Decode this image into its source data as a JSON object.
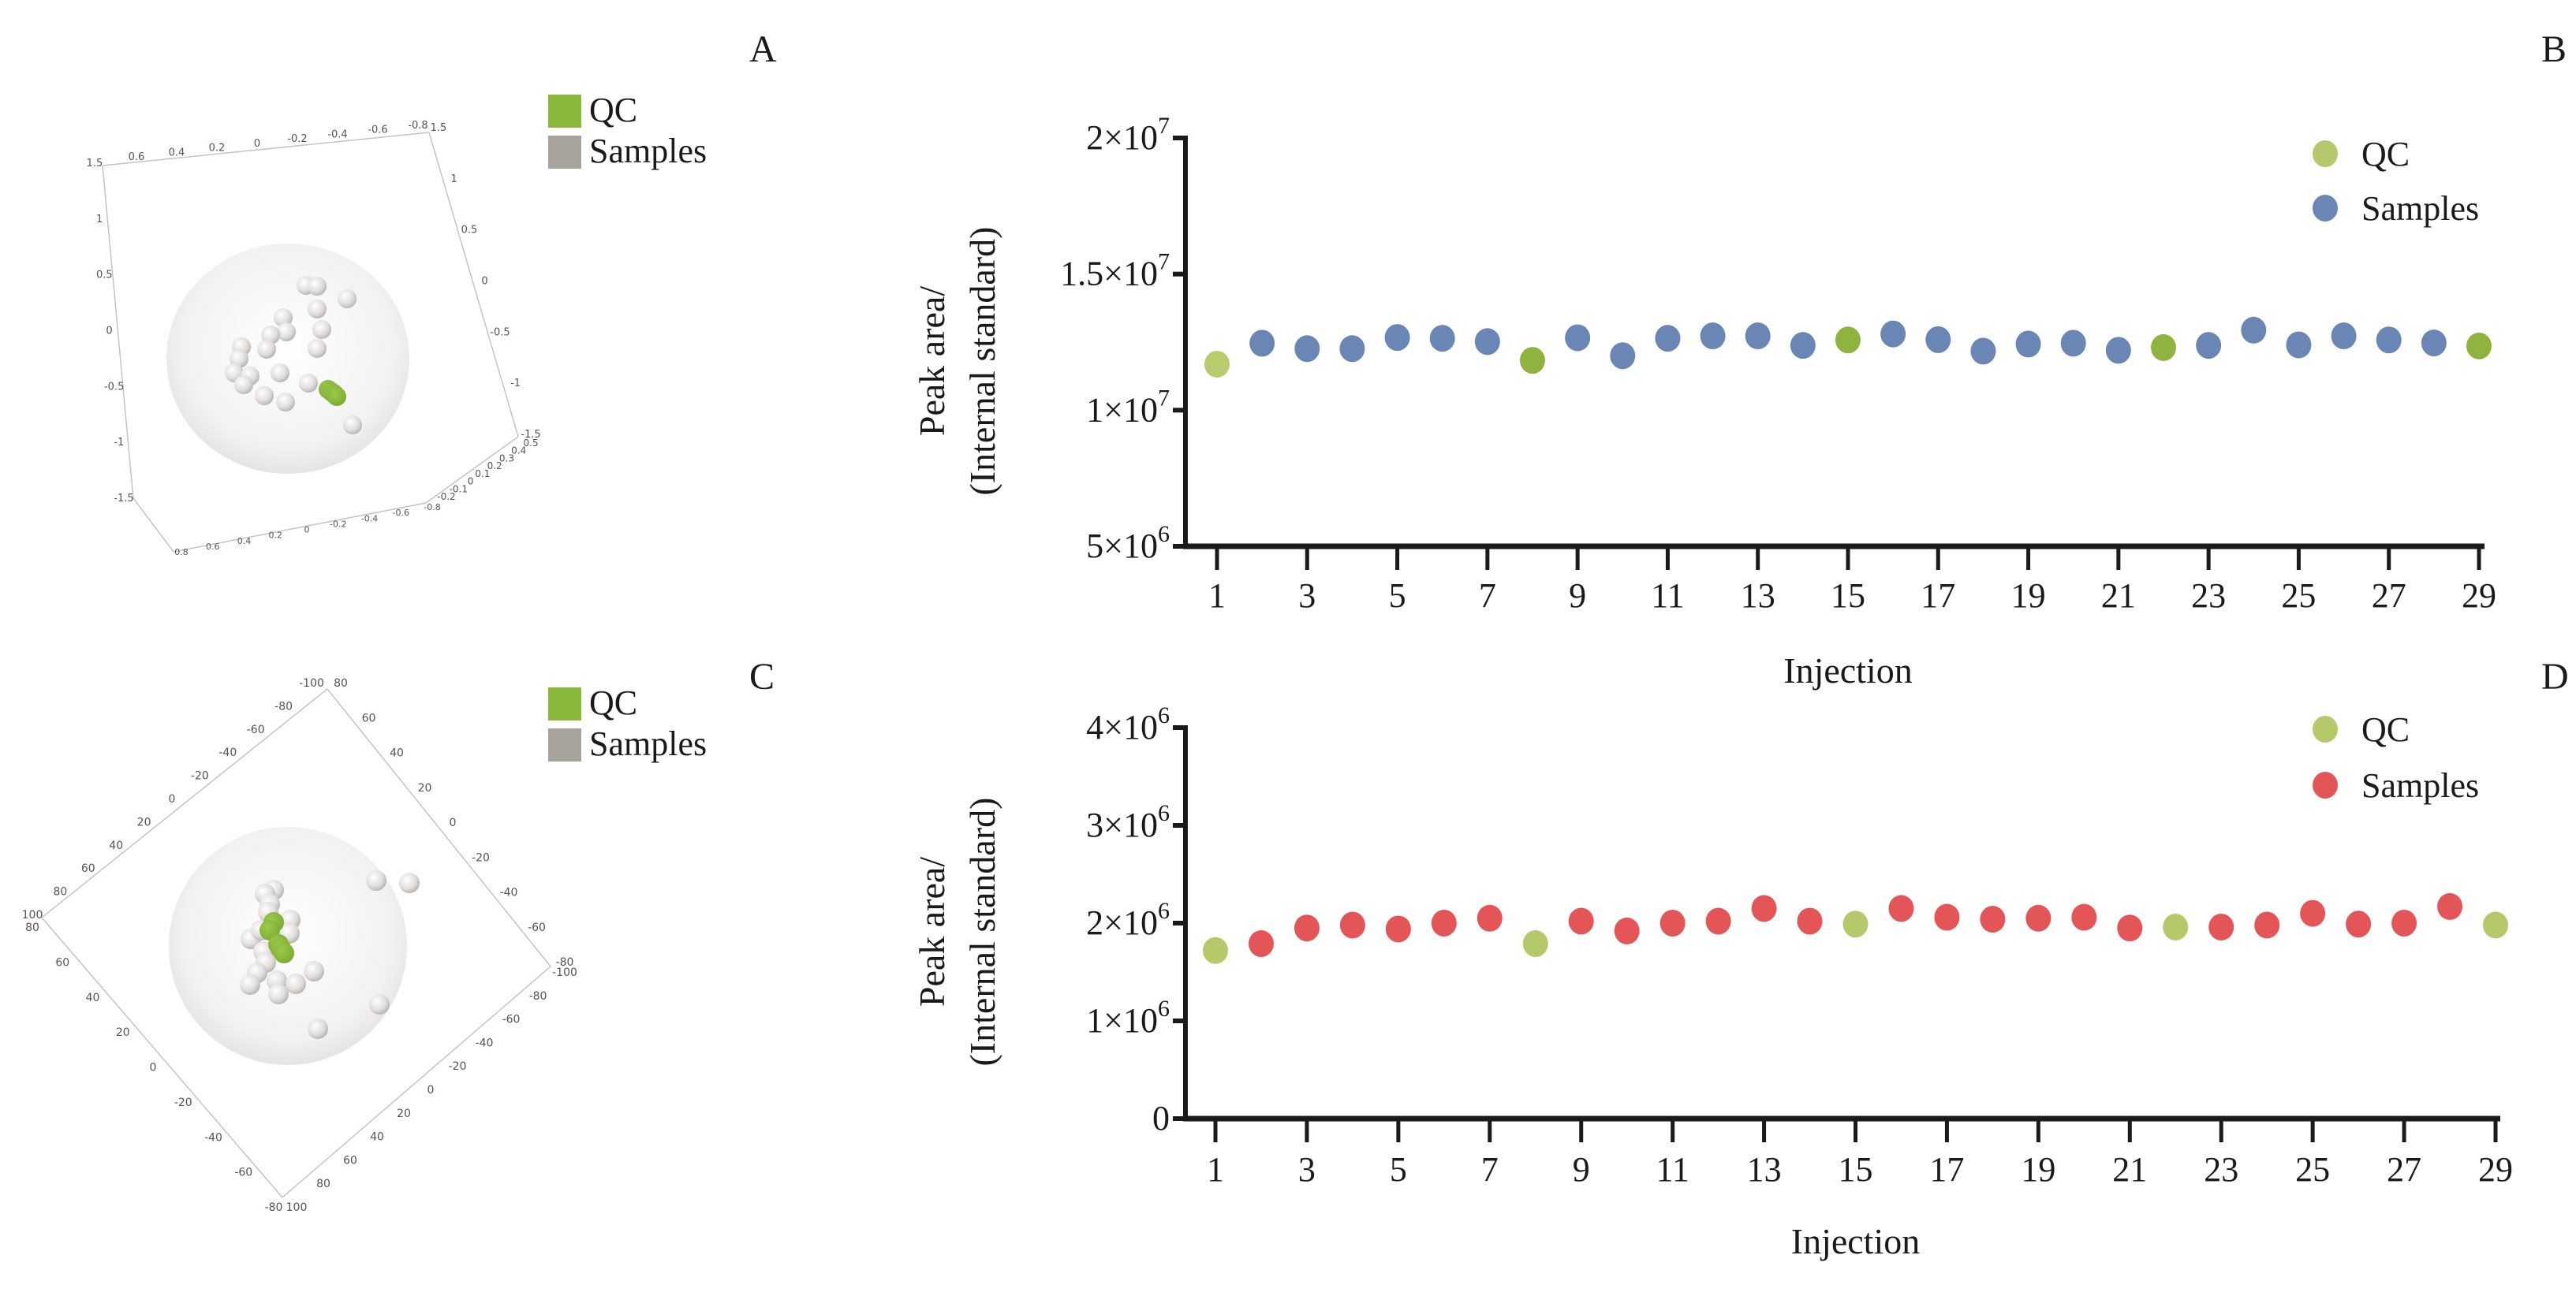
{
  "panel_labels": {
    "A": "A",
    "B": "B",
    "C": "C",
    "D": "D"
  },
  "chart_data": [
    {
      "panel": "A",
      "type": "scatter3d",
      "legend": [
        {
          "label": "QC",
          "color": "#8ab83a"
        },
        {
          "label": "Samples",
          "color": "#a9a39d"
        }
      ],
      "axes_tick_labels": {
        "top": [
          "0.6",
          "0.4",
          "0.2",
          "0",
          "-0.2",
          "-0.4",
          "-0.6",
          "-0.8"
        ],
        "left": [
          "1.5",
          "1",
          "0.5",
          "0",
          "-0.5",
          "-1",
          "-1.5"
        ],
        "right": [
          "1.5",
          "1",
          "0.5",
          "0",
          "-0.5",
          "-1",
          "-1.5"
        ],
        "bottom": [
          "0.8",
          "0.6",
          "0.4",
          "0.2",
          "0",
          "-0.2",
          "-0.4",
          "-0.6",
          "-0.8"
        ],
        "depth": [
          "0.5",
          "0.4",
          "0.3",
          "0.2",
          "0.1",
          "0",
          "-0.1",
          "-0.2"
        ]
      },
      "point_counts": {
        "QC": 5,
        "Samples": 24
      },
      "confidence_sphere": true
    },
    {
      "panel": "C",
      "type": "scatter3d",
      "legend": [
        {
          "label": "QC",
          "color": "#8ab83a"
        },
        {
          "label": "Samples",
          "color": "#a9a39d"
        }
      ],
      "axes_tick_labels": {
        "top_left": [
          "-100",
          "-80",
          "-60",
          "-40",
          "-20",
          "0",
          "20",
          "40",
          "60",
          "80",
          "100"
        ],
        "top_right": [
          "80",
          "60",
          "40",
          "20",
          "0",
          "-20",
          "-40",
          "-60",
          "-80"
        ],
        "bottom_left": [
          "80",
          "60",
          "40",
          "20",
          "0",
          "-20",
          "-40",
          "-60",
          "-80"
        ],
        "bottom_right": [
          "-100",
          "-80",
          "-60",
          "-40",
          "-20",
          "0",
          "20",
          "40",
          "60",
          "80",
          "100"
        ]
      },
      "point_counts": {
        "QC": 5,
        "Samples": 24
      },
      "confidence_sphere": true
    },
    {
      "panel": "B",
      "type": "scatter",
      "xlabel": "Injection",
      "ylabel_lines": [
        "Peak area/",
        "(Internal standard)"
      ],
      "xlim": [
        1,
        29
      ],
      "xticks": [
        1,
        3,
        5,
        7,
        9,
        11,
        13,
        15,
        17,
        19,
        21,
        23,
        25,
        27,
        29
      ],
      "ylim": [
        5000000,
        20000000
      ],
      "yticks": [
        {
          "value": 5000000,
          "mantissa": "5×10",
          "exp": "6"
        },
        {
          "value": 10000000,
          "mantissa": "1×10",
          "exp": "7"
        },
        {
          "value": 15000000,
          "mantissa": "1.5×10",
          "exp": "7"
        },
        {
          "value": 20000000,
          "mantissa": "2×10",
          "exp": "7"
        }
      ],
      "legend_position": "top-right",
      "series": [
        {
          "name": "QC",
          "color": "#b5c96a",
          "marker_colors": [
            "#b8cc6e",
            "#8fb33f",
            "#8fb33f",
            "#8fb33f",
            "#8fb33f"
          ],
          "x": [
            1,
            8,
            15,
            22,
            29
          ],
          "y": [
            11690000,
            11830000,
            12580000,
            12300000,
            12360000
          ]
        },
        {
          "name": "Samples",
          "color": "#6a86b4",
          "x": [
            2,
            3,
            4,
            5,
            6,
            7,
            9,
            10,
            11,
            12,
            13,
            14,
            16,
            17,
            18,
            19,
            20,
            21,
            23,
            24,
            25,
            26,
            27,
            28
          ],
          "y": [
            12460000,
            12260000,
            12260000,
            12670000,
            12640000,
            12520000,
            12660000,
            12000000,
            12640000,
            12730000,
            12730000,
            12380000,
            12800000,
            12590000,
            12170000,
            12430000,
            12460000,
            12200000,
            12380000,
            12940000,
            12400000,
            12730000,
            12580000,
            12470000
          ]
        }
      ]
    },
    {
      "panel": "D",
      "type": "scatter",
      "xlabel": "Injection",
      "ylabel_lines": [
        "Peak area/",
        "(Internal standard)"
      ],
      "xlim": [
        1,
        29
      ],
      "xticks": [
        1,
        3,
        5,
        7,
        9,
        11,
        13,
        15,
        17,
        19,
        21,
        23,
        25,
        27,
        29
      ],
      "ylim": [
        0,
        4000000
      ],
      "yticks": [
        {
          "value": 0,
          "mantissa": "0",
          "exp": ""
        },
        {
          "value": 1000000,
          "mantissa": "1×10",
          "exp": "6"
        },
        {
          "value": 2000000,
          "mantissa": "2×10",
          "exp": "6"
        },
        {
          "value": 3000000,
          "mantissa": "3×10",
          "exp": "6"
        },
        {
          "value": 4000000,
          "mantissa": "4×10",
          "exp": "6"
        }
      ],
      "legend_position": "top-right",
      "series": [
        {
          "name": "QC",
          "color": "#b5c96a",
          "x": [
            1,
            8,
            15,
            22,
            29
          ],
          "y": [
            1720000,
            1790000,
            1990000,
            1960000,
            1980000
          ]
        },
        {
          "name": "Samples",
          "color": "#e45558",
          "x": [
            2,
            3,
            4,
            5,
            6,
            7,
            9,
            10,
            11,
            12,
            13,
            14,
            16,
            17,
            18,
            19,
            20,
            21,
            23,
            24,
            25,
            26,
            27,
            28
          ],
          "y": [
            1790000,
            1950000,
            1980000,
            1940000,
            2000000,
            2050000,
            2020000,
            1920000,
            2000000,
            2020000,
            2150000,
            2020000,
            2150000,
            2060000,
            2040000,
            2050000,
            2060000,
            1950000,
            1960000,
            1980000,
            2100000,
            1990000,
            2000000,
            2170000
          ]
        }
      ]
    }
  ]
}
